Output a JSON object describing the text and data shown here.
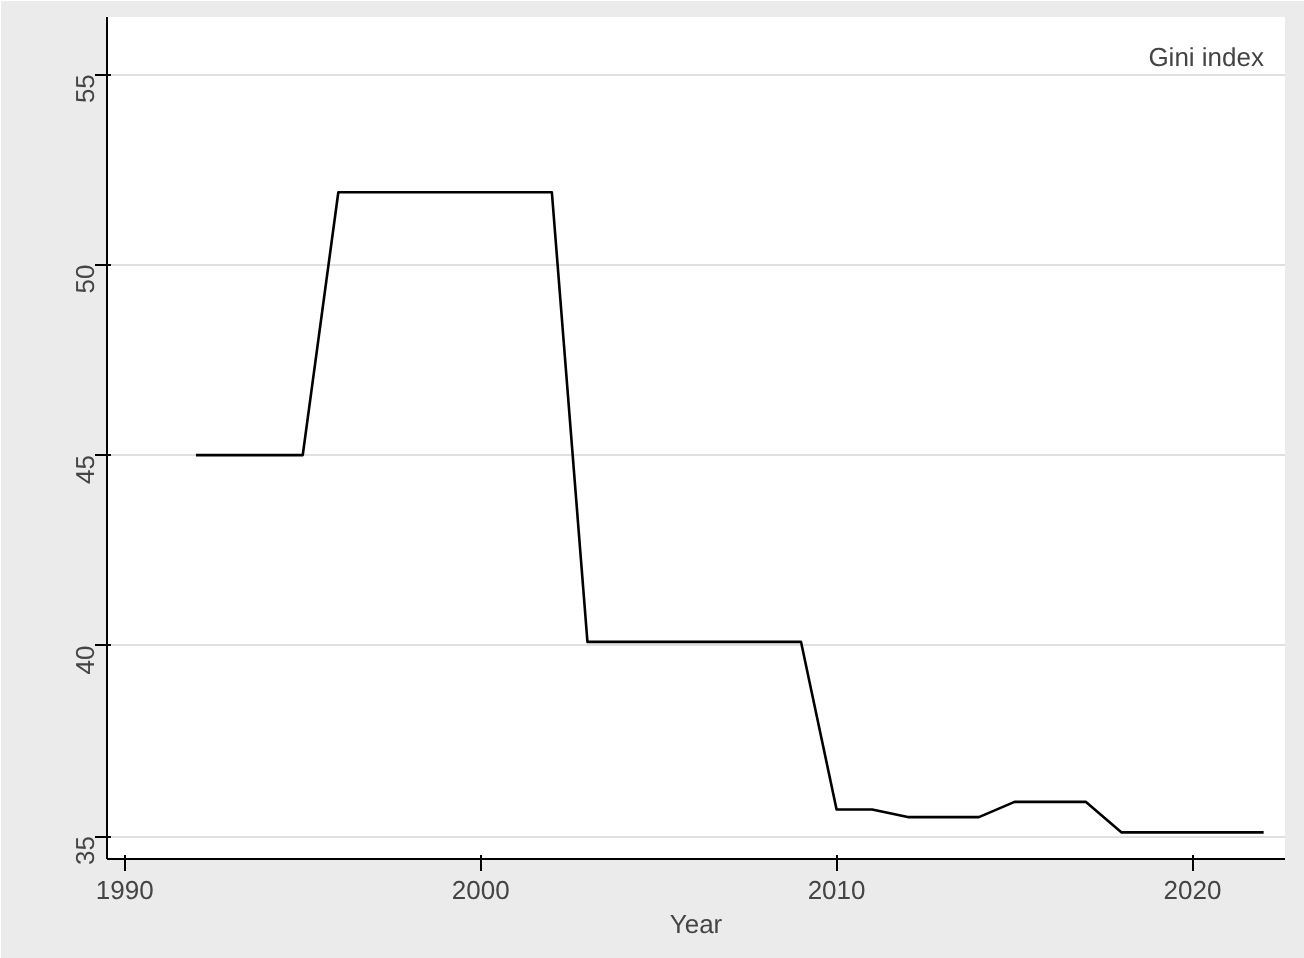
{
  "chart_data": {
    "type": "line",
    "xlabel": "Year",
    "x": [
      1992,
      1993,
      1994,
      1995,
      1996,
      1997,
      1998,
      1999,
      2000,
      2001,
      2002,
      2003,
      2004,
      2005,
      2006,
      2007,
      2008,
      2009,
      2010,
      2011,
      2012,
      2013,
      2014,
      2015,
      2016,
      2017,
      2018,
      2019,
      2020,
      2021,
      2022
    ],
    "series": [
      {
        "name": "Gini index",
        "color": "#000000",
        "values": [
          45,
          45,
          45,
          45,
          51.9,
          51.9,
          51.9,
          51.9,
          51.9,
          51.9,
          51.9,
          40.1,
          40.1,
          40.1,
          40.1,
          40.1,
          40.1,
          40.1,
          35.7,
          35.7,
          35.5,
          35.5,
          35.5,
          35.9,
          35.9,
          35.9,
          35.1,
          35.1,
          35.1,
          35.1,
          35.1
        ]
      }
    ],
    "xlim": [
      1989.5,
      2022.6
    ],
    "ylim": [
      34.4,
      56.5
    ],
    "xticks": [
      1990,
      2000,
      2010,
      2020
    ],
    "yticks": [
      35,
      40,
      45,
      50,
      55
    ],
    "grid": "y",
    "legend": "top right",
    "marker": "none",
    "line_style": "solid"
  }
}
